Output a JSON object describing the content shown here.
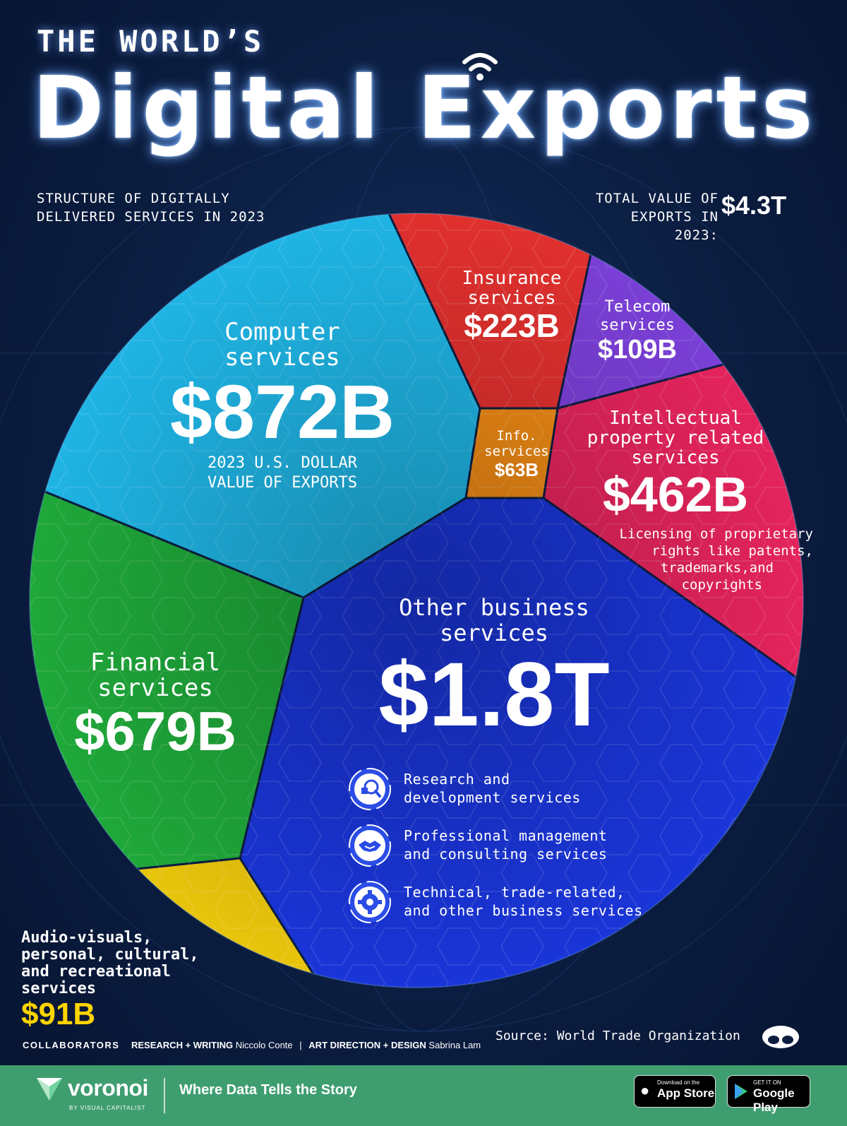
{
  "header": {
    "title_small": "THE WORLD’S",
    "title_big": "Digital Exports",
    "subtitle_line1": "STRUCTURE OF DIGITALLY",
    "subtitle_line2": "DELIVERED SERVICES IN 2023",
    "total_label_line1": "TOTAL VALUE OF",
    "total_label_line2": "EXPORTS IN 2023:",
    "total_value": "$4.3T"
  },
  "chart_data": {
    "type": "pie",
    "title": "Digital Exports",
    "unit": "2023 U.S. DOLLAR VALUE OF EXPORTS",
    "total": "$4.3T",
    "slices": [
      {
        "id": "computer",
        "label": "Computer services",
        "value_text": "$872B",
        "value": 872,
        "color": "#1fb4e4"
      },
      {
        "id": "insurance",
        "label": "Insurance services",
        "value_text": "$223B",
        "value": 223,
        "color": "#e0302e"
      },
      {
        "id": "telecom",
        "label": "Telecom services",
        "value_text": "$109B",
        "value": 109,
        "color": "#7a3fd6"
      },
      {
        "id": "ip",
        "label": "Intellectual property related services",
        "value_text": "$462B",
        "value": 462,
        "color": "#e4245c"
      },
      {
        "id": "info",
        "label": "Info. services",
        "value_text": "$63B",
        "value": 63,
        "color": "#f08a14"
      },
      {
        "id": "other",
        "label": "Other business services",
        "value_text": "$1.8T",
        "value": 1800,
        "color": "#1a35d8"
      },
      {
        "id": "audio",
        "label": "Audio-visuals, personal, cultural, and recreational services",
        "value_text": "$91B",
        "value": 91,
        "color": "#e8c40c"
      },
      {
        "id": "financial",
        "label": "Financial services",
        "value_text": "$679B",
        "value": 679,
        "color": "#1fa83a"
      }
    ]
  },
  "labels": {
    "computer_line1": "Computer",
    "computer_line2": "services",
    "computer_value": "$872B",
    "unit_line1": "2023 U.S. DOLLAR",
    "unit_line2": "VALUE OF EXPORTS",
    "insurance_line1": "Insurance",
    "insurance_line2": "services",
    "insurance_value": "$223B",
    "telecom_line1": "Telecom",
    "telecom_line2": "services",
    "telecom_value": "$109B",
    "info_line1": "Info.",
    "info_line2": "services",
    "info_value": "$63B",
    "ip_line1": "Intellectual",
    "ip_line2": "property related",
    "ip_line3": "services",
    "ip_value": "$462B",
    "ip_note_line1": "Licensing of proprietary",
    "ip_note_line2": "rights like patents,",
    "ip_note_line3": "trademarks,and",
    "ip_note_line4": "copyrights",
    "other_line1": "Other business",
    "other_line2": "services",
    "other_value": "$1.8T",
    "financial_line1": "Financial",
    "financial_line2": "services",
    "financial_value": "$679B",
    "audio_line1": "Audio-visuals,",
    "audio_line2": "personal, cultural,",
    "audio_line3": "and recreational",
    "audio_line4": "services",
    "audio_value": "$91B"
  },
  "other_services": [
    {
      "line1": "Research and",
      "line2": "development services",
      "icon": "research-icon"
    },
    {
      "line1": "Professional management",
      "line2": "and consulting services",
      "icon": "handshake-icon"
    },
    {
      "line1": "Technical, trade-related,",
      "line2": "and other business services",
      "icon": "gear-icon"
    }
  ],
  "credits": {
    "collaborators": "COLLABORATORS",
    "research_label": "RESEARCH + WRITING",
    "research_name": "Niccolo Conte",
    "separator": "|",
    "design_label": "ART DIRECTION + DESIGN",
    "design_name": "Sabrina Lam",
    "source": "Source: World Trade Organization"
  },
  "footer": {
    "brand": "voronoi",
    "brand_sub": "BY VISUAL CAPITALIST",
    "tagline": "Where Data Tells the Story",
    "appstore_small": "Download on the",
    "appstore_big": "App Store",
    "googleplay_small": "GET IT ON",
    "googleplay_big": "Google Play"
  }
}
